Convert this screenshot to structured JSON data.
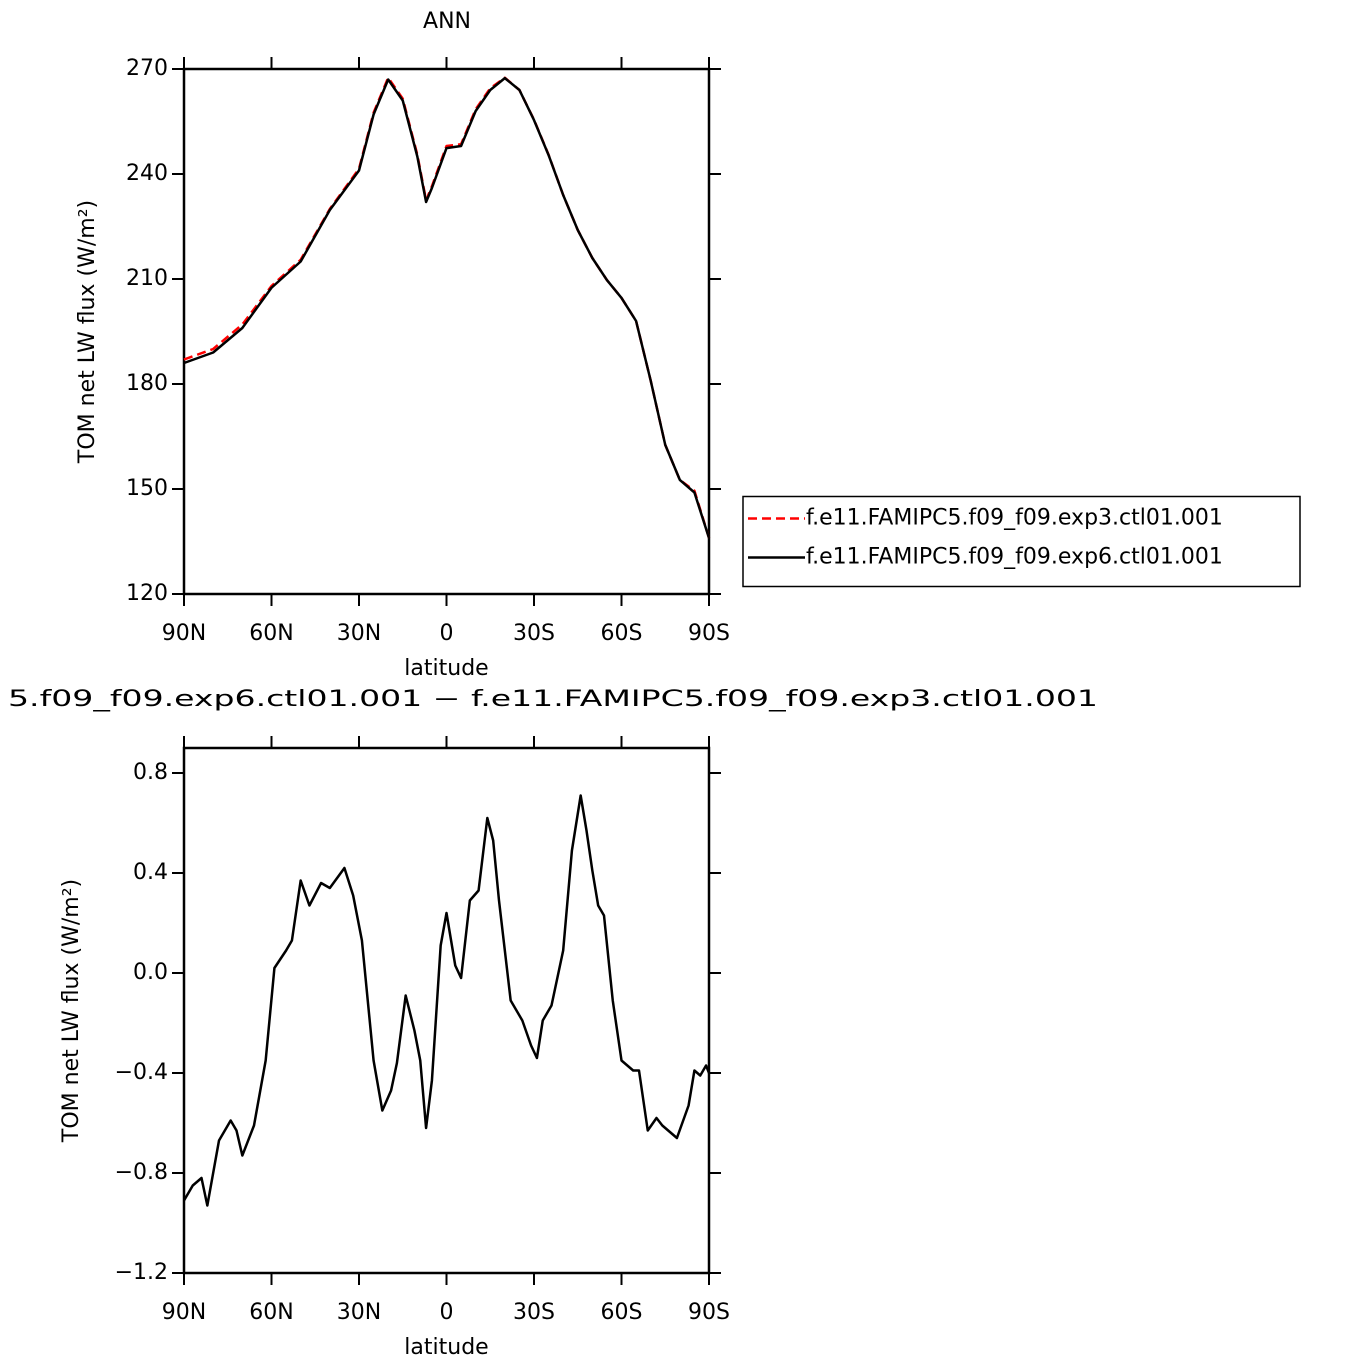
{
  "chart_data": [
    {
      "type": "line",
      "title": "ANN",
      "x_label": "latitude",
      "y_label": "TOM net LW flux (W/m²)",
      "x": [
        90,
        80,
        70,
        60,
        50,
        40,
        30,
        25,
        20,
        15,
        10,
        7,
        5,
        0,
        -5,
        -10,
        -15,
        -20,
        -25,
        -30,
        -35,
        -40,
        -45,
        -50,
        -55,
        -60,
        -65,
        -70,
        -75,
        -80,
        -85,
        -90
      ],
      "series": [
        {
          "name": "f.e11.FAMIPC5.f09_f09.exp3.ctl01.001",
          "color": "#ff0000",
          "line_style": "dashed",
          "values": [
            187,
            190,
            197,
            208,
            215.5,
            230,
            241.5,
            257.5,
            267.5,
            261.5,
            245.5,
            232.5,
            236.5,
            248,
            248.5,
            258.5,
            264.5,
            267.5,
            264,
            255.5,
            245.5,
            234,
            224,
            216,
            209.7,
            204.6,
            198,
            181,
            162.6,
            152.6,
            149.5,
            136
          ]
        },
        {
          "name": "f.e11.FAMIPC5.f09_f09.exp6.ctl01.001",
          "color": "#000000",
          "line_style": "solid",
          "values": [
            186,
            189,
            196,
            207.5,
            215,
            229.7,
            241,
            257,
            267,
            261,
            245,
            232,
            236,
            247.4,
            248,
            258,
            264,
            267.4,
            264,
            255.4,
            245.4,
            234,
            224,
            216,
            209.7,
            204.6,
            198,
            181,
            162.6,
            152.6,
            149,
            136
          ]
        }
      ],
      "xlim": [
        90,
        -90
      ],
      "xticks": [
        {
          "value": 90,
          "label": "90N"
        },
        {
          "value": 60,
          "label": "60N"
        },
        {
          "value": 30,
          "label": "30N"
        },
        0,
        {
          "value": -30,
          "label": "30S"
        },
        {
          "value": -60,
          "label": "60S"
        },
        {
          "value": -90,
          "label": "90S"
        }
      ],
      "ylim": [
        120,
        270
      ],
      "yticks": [
        120,
        150,
        180,
        210,
        240,
        270
      ],
      "legend": "right"
    },
    {
      "type": "line",
      "title": "5.f09_f09.exp6.ctl01.001 − f.e11.FAMIPC5.f09_f09.exp3.ctl01.001",
      "x_label": "latitude",
      "y_label": "TOM net LW flux (W/m²)",
      "x": [
        90,
        87,
        84,
        82,
        78,
        74,
        72,
        70,
        66,
        62,
        59,
        55,
        53,
        50,
        47,
        43,
        40,
        35,
        32,
        29,
        25,
        22,
        19,
        17,
        14,
        11,
        9,
        7,
        5,
        2,
        0,
        -3,
        -5,
        -8,
        -11,
        -14,
        -16,
        -18,
        -22,
        -26,
        -29,
        -31,
        -33,
        -36,
        -40,
        -43,
        -46,
        -48,
        -50,
        -52,
        -54,
        -57,
        -60,
        -64,
        -66,
        -69,
        -72,
        -74,
        -77,
        -79,
        -83,
        -85,
        -87,
        -89,
        -90
      ],
      "values": [
        -0.91,
        -0.85,
        -0.82,
        -0.93,
        -0.67,
        -0.59,
        -0.63,
        -0.73,
        -0.61,
        -0.35,
        0.02,
        0.09,
        0.13,
        0.37,
        0.27,
        0.36,
        0.34,
        0.42,
        0.31,
        0.13,
        -0.35,
        -0.55,
        -0.47,
        -0.36,
        -0.09,
        -0.23,
        -0.35,
        -0.62,
        -0.43,
        0.11,
        0.24,
        0.03,
        -0.02,
        0.29,
        0.33,
        0.62,
        0.53,
        0.29,
        -0.11,
        -0.19,
        -0.29,
        -0.34,
        -0.19,
        -0.13,
        0.09,
        0.49,
        0.71,
        0.57,
        0.41,
        0.27,
        0.23,
        -0.11,
        -0.35,
        -0.39,
        -0.39,
        -0.63,
        -0.58,
        -0.61,
        -0.64,
        -0.66,
        -0.53,
        -0.39,
        -0.41,
        -0.37,
        -0.4
      ],
      "color": "#000000",
      "xlim": [
        90,
        -90
      ],
      "xticks": [
        {
          "value": 90,
          "label": "90N"
        },
        {
          "value": 60,
          "label": "60N"
        },
        {
          "value": 30,
          "label": "30N"
        },
        0,
        {
          "value": -30,
          "label": "30S"
        },
        {
          "value": -60,
          "label": "60S"
        },
        {
          "value": -90,
          "label": "90S"
        }
      ],
      "ylim": [
        -1.2,
        0.9
      ],
      "yticks": [
        {
          "value": -1.2,
          "label": "−1.2"
        },
        {
          "value": -0.8,
          "label": "−0.8"
        },
        {
          "value": -0.4,
          "label": "−0.4"
        },
        {
          "value": 0,
          "label": "0.0"
        },
        0.4,
        0.8
      ]
    }
  ]
}
